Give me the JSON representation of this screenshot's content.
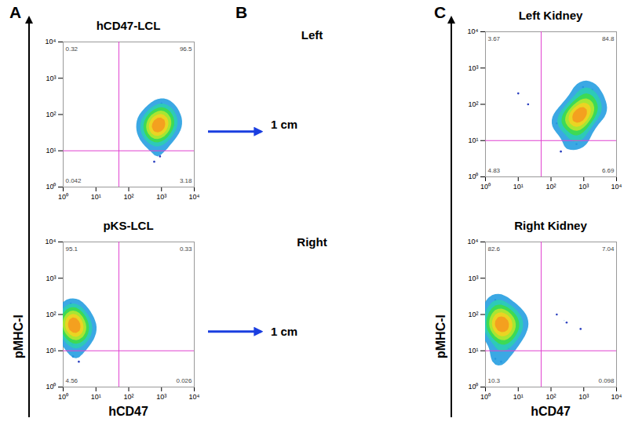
{
  "panels": [
    {
      "letter": "A",
      "y_label": "pMHC-I",
      "x_label": "hCD47"
    },
    {
      "letter": "B"
    },
    {
      "letter": "C",
      "y_label": "pMHC-I",
      "x_label": "hCD47"
    }
  ],
  "photos": [
    {
      "title": "Left",
      "scale_bar": "1 cm"
    },
    {
      "title": "Right",
      "scale_bar": "1 cm"
    }
  ],
  "chart_data": [
    {
      "type": "scatter",
      "panel": "A",
      "title": "hCD47-LCL",
      "log": true,
      "xlim": [
        1,
        10000
      ],
      "ylim": [
        1,
        10000
      ],
      "xticks": [
        {
          "value": 1,
          "label": "10⁰"
        },
        {
          "value": 10,
          "label": "10¹"
        },
        {
          "value": 100,
          "label": "10²"
        },
        {
          "value": 1000,
          "label": "10³"
        },
        {
          "value": 10000,
          "label": "10⁴"
        }
      ],
      "yticks": [
        {
          "value": 1,
          "label": "10⁰"
        },
        {
          "value": 10,
          "label": "10¹"
        },
        {
          "value": 100,
          "label": "10²"
        },
        {
          "value": 1000,
          "label": "10³"
        },
        {
          "value": 10000,
          "label": "10⁴"
        }
      ],
      "gate": {
        "x": 50,
        "y": 10
      },
      "quadrant_percent": {
        "upper_left": 0.32,
        "upper_right": 96.5,
        "lower_left": 0.042,
        "lower_right": 3.18
      },
      "x": [
        800,
        600,
        1000,
        700,
        900,
        1200,
        500,
        1500,
        650,
        850,
        400,
        2000,
        750,
        1100,
        950,
        550,
        300,
        1800,
        700,
        1300,
        900,
        600,
        2500,
        450,
        1000,
        800,
        350,
        1600,
        1200,
        700,
        900,
        600
      ],
      "y": [
        50,
        40,
        60,
        70,
        35,
        55,
        45,
        80,
        25,
        100,
        30,
        60,
        120,
        40,
        20,
        65,
        50,
        90,
        30,
        150,
        45,
        75,
        50,
        25,
        200,
        18,
        70,
        35,
        110,
        55,
        7,
        5
      ]
    },
    {
      "type": "scatter",
      "panel": "A",
      "title": "pKS-LCL",
      "log": true,
      "xlim": [
        1,
        10000
      ],
      "ylim": [
        1,
        10000
      ],
      "xticks": [
        {
          "value": 1,
          "label": "10⁰"
        },
        {
          "value": 10,
          "label": "10¹"
        },
        {
          "value": 100,
          "label": "10²"
        },
        {
          "value": 1000,
          "label": "10³"
        },
        {
          "value": 10000,
          "label": "10⁴"
        }
      ],
      "yticks": [
        {
          "value": 1,
          "label": "10⁰"
        },
        {
          "value": 10,
          "label": "10¹"
        },
        {
          "value": 100,
          "label": "10²"
        },
        {
          "value": 1000,
          "label": "10³"
        },
        {
          "value": 10000,
          "label": "10⁴"
        }
      ],
      "gate": {
        "x": 50,
        "y": 10
      },
      "quadrant_percent": {
        "upper_left": 95.1,
        "upper_right": 0.33,
        "lower_left": 4.56,
        "lower_right": 0.026
      },
      "x": [
        2,
        1.5,
        2.5,
        3,
        1.8,
        2.2,
        1.3,
        4,
        2,
        1.6,
        3.5,
        2.8,
        1.2,
        2,
        5,
        1.9,
        2.4,
        1.4,
        3,
        2.1,
        1.7,
        6,
        2.6,
        1.5,
        2.3,
        3.2,
        1.8,
        2,
        1.1,
        4.5,
        2,
        3
      ],
      "y": [
        50,
        40,
        60,
        30,
        70,
        45,
        35,
        80,
        25,
        100,
        55,
        20,
        60,
        120,
        40,
        15,
        150,
        50,
        75,
        35,
        200,
        45,
        28,
        90,
        65,
        18,
        110,
        38,
        55,
        30,
        7,
        5
      ]
    },
    {
      "type": "scatter",
      "panel": "C",
      "title": "Left Kidney",
      "log": true,
      "xlim": [
        1,
        10000
      ],
      "ylim": [
        1,
        10000
      ],
      "xticks": [
        {
          "value": 1,
          "label": "10⁰"
        },
        {
          "value": 10,
          "label": "10¹"
        },
        {
          "value": 100,
          "label": "10²"
        },
        {
          "value": 1000,
          "label": "10³"
        },
        {
          "value": 10000,
          "label": "10⁴"
        }
      ],
      "yticks": [
        {
          "value": 1,
          "label": "10⁰"
        },
        {
          "value": 10,
          "label": "10¹"
        },
        {
          "value": 100,
          "label": "10²"
        },
        {
          "value": 1000,
          "label": "10³"
        },
        {
          "value": 10000,
          "label": "10⁴"
        }
      ],
      "gate": {
        "x": 50,
        "y": 10
      },
      "quadrant_percent": {
        "upper_left": 3.67,
        "upper_right": 84.8,
        "lower_left": 4.83,
        "lower_right": 6.69
      },
      "x": [
        700,
        500,
        900,
        1200,
        600,
        800,
        400,
        1500,
        1000,
        650,
        300,
        2000,
        750,
        1100,
        850,
        550,
        250,
        1800,
        700,
        1300,
        950,
        450,
        2500,
        350,
        1000,
        800,
        3000,
        600,
        150,
        20,
        10,
        200
      ],
      "y": [
        50,
        40,
        70,
        100,
        30,
        60,
        45,
        150,
        35,
        80,
        25,
        120,
        200,
        55,
        20,
        90,
        40,
        250,
        30,
        65,
        300,
        15,
        80,
        50,
        45,
        12,
        60,
        8,
        30,
        100,
        200,
        5
      ]
    },
    {
      "type": "scatter",
      "panel": "C",
      "title": "Right Kidney",
      "log": true,
      "xlim": [
        1,
        10000
      ],
      "ylim": [
        1,
        10000
      ],
      "xticks": [
        {
          "value": 1,
          "label": "10⁰"
        },
        {
          "value": 10,
          "label": "10¹"
        },
        {
          "value": 100,
          "label": "10²"
        },
        {
          "value": 1000,
          "label": "10³"
        },
        {
          "value": 10000,
          "label": "10⁴"
        }
      ],
      "yticks": [
        {
          "value": 1,
          "label": "10⁰"
        },
        {
          "value": 10,
          "label": "10¹"
        },
        {
          "value": 100,
          "label": "10²"
        },
        {
          "value": 1000,
          "label": "10³"
        },
        {
          "value": 10000,
          "label": "10⁴"
        }
      ],
      "gate": {
        "x": 50,
        "y": 10
      },
      "quadrant_percent": {
        "upper_left": 82.6,
        "upper_right": 7.04,
        "lower_left": 10.3,
        "lower_right": 0.098
      },
      "x": [
        3,
        2,
        4,
        5,
        2.5,
        3.5,
        1.5,
        6,
        3,
        2,
        8,
        4,
        1.2,
        3,
        10,
        2.5,
        5,
        1.8,
        3,
        7,
        2,
        4,
        3,
        1.5,
        2.8,
        5,
        12,
        300,
        800,
        150,
        2,
        3
      ],
      "y": [
        50,
        40,
        70,
        30,
        90,
        45,
        35,
        100,
        25,
        150,
        60,
        20,
        55,
        200,
        40,
        15,
        120,
        60,
        80,
        30,
        250,
        50,
        35,
        110,
        65,
        12,
        75,
        60,
        40,
        100,
        6,
        5
      ]
    }
  ]
}
